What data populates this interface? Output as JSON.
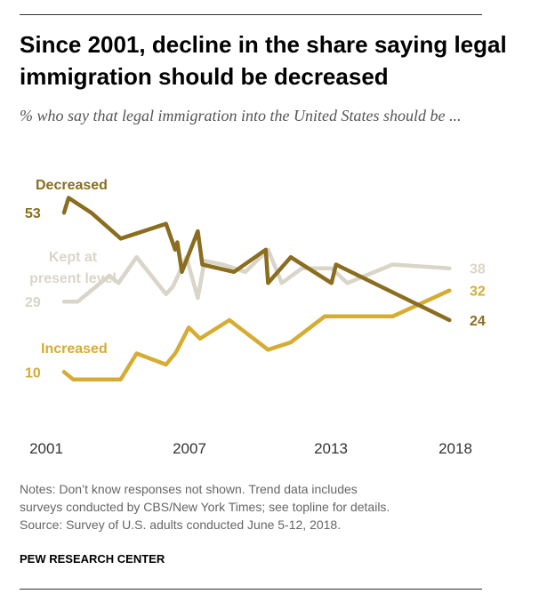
{
  "title": "Since 2001, decline in the share saying legal immigration should be decreased",
  "subtitle": "% who say that legal immigration into the United States should be ...",
  "notes": [
    "Notes: Don’t know responses not shown. Trend data includes",
    "surveys conducted by CBS/New York Times; see topline for details.",
    "Source: Survey of U.S. adults conducted June 5-12, 2018."
  ],
  "source_org": "PEW RESEARCH CENTER",
  "colors": {
    "decreased": "#8a6d1e",
    "kept": "#d9d5c8",
    "increased": "#d6ac33"
  },
  "chart_data": {
    "type": "line",
    "x_tick_labels": [
      "2001",
      "2007",
      "2013",
      "2018"
    ],
    "xlim": [
      2001,
      2018.5
    ],
    "ylim": [
      0,
      60
    ],
    "series": [
      {
        "name": "Decreased",
        "label_lines": [
          "Decreased"
        ],
        "color_key": "decreased",
        "start_label": "53",
        "end_label": "24",
        "points": [
          [
            2001.0,
            53
          ],
          [
            2001.2,
            57
          ],
          [
            2002.2,
            53
          ],
          [
            2003.5,
            46
          ],
          [
            2005.5,
            50
          ],
          [
            2005.9,
            43
          ],
          [
            2006.0,
            45
          ],
          [
            2006.2,
            37
          ],
          [
            2006.9,
            48
          ],
          [
            2007.1,
            39
          ],
          [
            2008.5,
            37
          ],
          [
            2009.9,
            43
          ],
          [
            2010.0,
            34
          ],
          [
            2011.0,
            41
          ],
          [
            2012.8,
            34
          ],
          [
            2013.0,
            39
          ],
          [
            2018.0,
            24
          ]
        ]
      },
      {
        "name": "Kept at present level",
        "label_lines": [
          "Kept at",
          "present level"
        ],
        "color_key": "kept",
        "start_label": "29",
        "end_label": "38",
        "points": [
          [
            2001.0,
            29
          ],
          [
            2001.6,
            29
          ],
          [
            2003.0,
            36
          ],
          [
            2003.4,
            34
          ],
          [
            2004.2,
            41
          ],
          [
            2005.5,
            31
          ],
          [
            2005.8,
            33
          ],
          [
            2006.1,
            37
          ],
          [
            2006.4,
            41
          ],
          [
            2006.9,
            30
          ],
          [
            2007.2,
            40
          ],
          [
            2008.0,
            39
          ],
          [
            2009.0,
            37
          ],
          [
            2010.0,
            43
          ],
          [
            2010.6,
            34
          ],
          [
            2011.5,
            38
          ],
          [
            2012.8,
            38
          ],
          [
            2013.5,
            34
          ],
          [
            2015.5,
            39
          ],
          [
            2018.0,
            38
          ]
        ]
      },
      {
        "name": "Increased",
        "label_lines": [
          "Increased"
        ],
        "color_key": "increased",
        "start_label": "10",
        "end_label": "32",
        "points": [
          [
            2001.0,
            10
          ],
          [
            2001.4,
            8
          ],
          [
            2003.5,
            8
          ],
          [
            2004.2,
            15
          ],
          [
            2005.5,
            12
          ],
          [
            2005.9,
            15
          ],
          [
            2006.0,
            16
          ],
          [
            2006.5,
            22
          ],
          [
            2007.0,
            19
          ],
          [
            2008.3,
            24
          ],
          [
            2010.0,
            16
          ],
          [
            2011.0,
            18
          ],
          [
            2012.5,
            25
          ],
          [
            2015.5,
            25
          ],
          [
            2018.0,
            32
          ]
        ]
      }
    ]
  }
}
